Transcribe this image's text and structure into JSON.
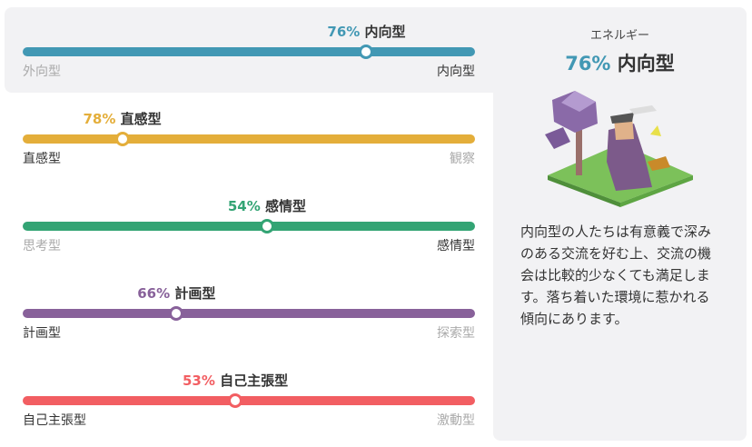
{
  "traits": [
    {
      "value": 76,
      "value_label": "76%",
      "name": "内向型",
      "left": "外向型",
      "right": "内向型",
      "side": "right",
      "color": "#4298b4"
    },
    {
      "value": 78,
      "value_label": "78%",
      "name": "直感型",
      "left": "直感型",
      "right": "観察",
      "side": "left",
      "color": "#e4ae3a"
    },
    {
      "value": 54,
      "value_label": "54%",
      "name": "感情型",
      "left": "思考型",
      "right": "感情型",
      "side": "right",
      "color": "#33a474"
    },
    {
      "value": 66,
      "value_label": "66%",
      "name": "計画型",
      "left": "計画型",
      "right": "探索型",
      "side": "left",
      "color": "#88619a"
    },
    {
      "value": 53,
      "value_label": "53%",
      "name": "自己主張型",
      "left": "自己主張型",
      "right": "激動型",
      "side": "left",
      "color": "#f25e62"
    }
  ],
  "panel": {
    "heading": "エネルギー",
    "value_label": "76%",
    "trait": "内向型",
    "color": "#4298b4",
    "description": "内向型の人たちは有意義で深みのある交流を好む上、交流の機会は比較的少なくても満足します。落ち着いた環境に惹かれる傾向にあります。"
  }
}
